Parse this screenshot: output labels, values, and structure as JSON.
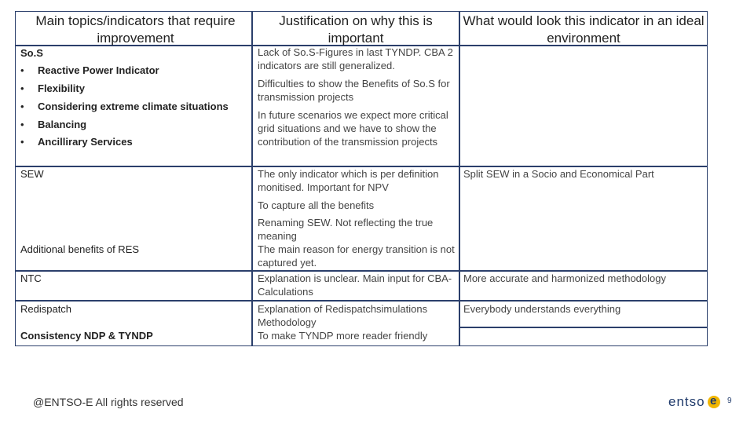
{
  "headers": {
    "col1": "Main topics/indicators that require improvement",
    "col2": "Justification on why this is important",
    "col3": "What would look this indicator in an ideal environment"
  },
  "rows": {
    "sos": {
      "title": "So.S",
      "bullets": [
        "Reactive Power Indicator",
        "Flexibility",
        "Considering extreme climate situations",
        "Balancing",
        "Ancillirary Services"
      ],
      "bullet_symbol": "•",
      "justifications": [
        "Lack of So.S-Figures in last TYNDP. CBA 2 indicators are still generalized.",
        "Difficulties to show  the Benefits of So.S for transmission projects",
        "In future scenarios we expect more critical grid situations and we have to show  the contribution of the transmission projects"
      ],
      "ideal": ""
    },
    "sew": {
      "title": "SEW",
      "justifications": [
        "The only indicator which is per definition monitised. Important for NPV",
        "To capture all the benefits",
        "Renaming SEW. Not reflecting the true meaning"
      ],
      "ideal": "Split SEW in a Socio and Economical Part"
    },
    "res": {
      "title": "Additional benefits of RES",
      "justification": "The main reason for energy transition is not captured yet.",
      "ideal": ""
    },
    "ntc": {
      "title": "NTC",
      "justification": "Explanation is unclear. Main input for CBA-Calculations",
      "ideal": "More accurate and harmonized methodology"
    },
    "redispatch": {
      "title": "Redispatch",
      "justification": "Explanation of Redispatchsimulations Methodology",
      "ideal": "Everybody understands everything"
    },
    "consistency": {
      "title": "Consistency NDP & TYNDP",
      "justification": "To make TYNDP more reader friendly",
      "ideal": ""
    }
  },
  "footer": {
    "copyright": "@ENTSO-E All rights reserved",
    "logo_text": "entso",
    "logo_letter": "e",
    "page_number": "9"
  },
  "colors": {
    "border": "#2b3f6b",
    "logo_accent": "#f1b600",
    "logo_text": "#1f3a6b"
  }
}
